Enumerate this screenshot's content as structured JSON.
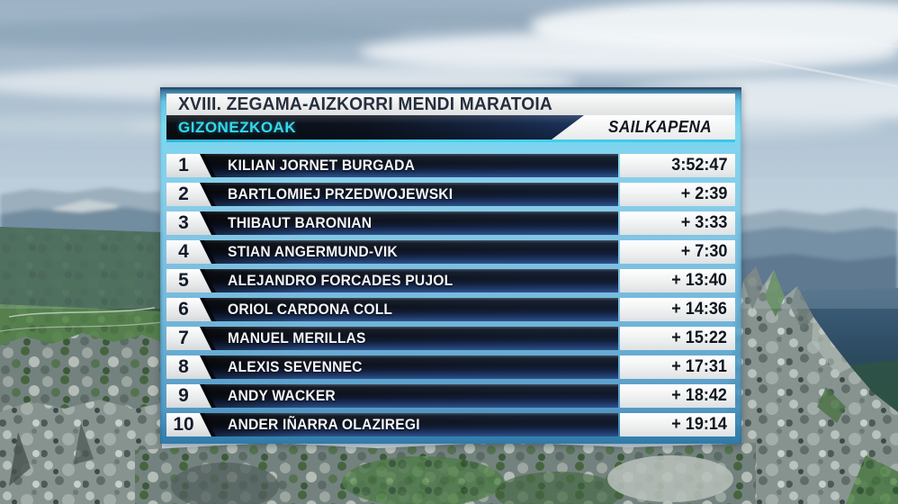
{
  "header": {
    "title": "XVIII. ZEGAMA-AIZKORRI MENDI MARATOIA",
    "category": "GIZONEZKOAK",
    "classification_label": "SAILKAPENA"
  },
  "standings": {
    "rows": [
      {
        "rank": "1",
        "name": "KILIAN JORNET BURGADA",
        "time": "3:52:47"
      },
      {
        "rank": "2",
        "name": "BARTLOMIEJ PRZEDWOJEWSKI",
        "time": "+ 2:39"
      },
      {
        "rank": "3",
        "name": "THIBAUT BARONIAN",
        "time": "+ 3:33"
      },
      {
        "rank": "4",
        "name": "STIAN ANGERMUND-VIK",
        "time": "+ 7:30"
      },
      {
        "rank": "5",
        "name": "ALEJANDRO FORCADES PUJOL",
        "time": "+ 13:40"
      },
      {
        "rank": "6",
        "name": "ORIOL CARDONA COLL",
        "time": "+ 14:36"
      },
      {
        "rank": "7",
        "name": "MANUEL MERILLAS",
        "time": "+ 15:22"
      },
      {
        "rank": "8",
        "name": "ALEXIS SEVENNEC",
        "time": "+ 17:31"
      },
      {
        "rank": "9",
        "name": "ANDY WACKER",
        "time": "+ 18:42"
      },
      {
        "rank": "10",
        "name": "ANDER IÑARRA OLAZIREGI",
        "time": "+ 19:14"
      }
    ]
  },
  "colors": {
    "accent_cyan": "#38d4ea",
    "frame_blue": "#5fc0e2",
    "navy_dark": "#0d1119",
    "navy_blue": "#2a4d85",
    "text_dark": "#1a2230",
    "box_white": "#f2f3f4"
  }
}
